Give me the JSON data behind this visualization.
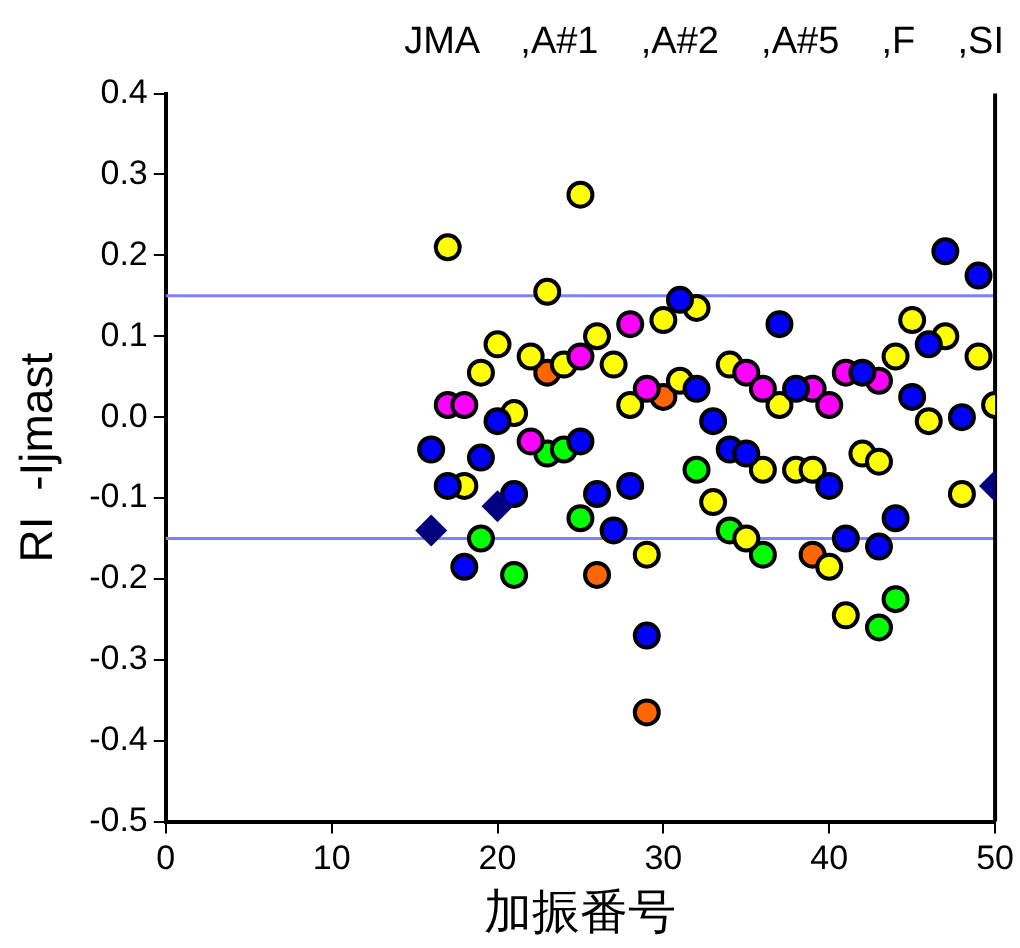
{
  "chart_data": {
    "type": "scatter",
    "title": "JMA    ,A#1    ,A#2    ,A#5    ,F    ,SI",
    "xlabel": "加振番号",
    "ylabel": "RI  -Ijmast",
    "xlim": [
      0,
      50
    ],
    "xticks": [
      0,
      10,
      20,
      30,
      40,
      50
    ],
    "ylim": [
      -0.5,
      0.4
    ],
    "yticks": [
      {
        "value": -0.5,
        "label": "-0.5"
      },
      {
        "value": -0.4,
        "label": "-0.4"
      },
      {
        "value": -0.3,
        "label": "-0.3"
      },
      {
        "value": -0.2,
        "label": "-0.2"
      },
      {
        "value": -0.1,
        "label": "-0.1"
      },
      {
        "value": 0,
        "label": "0.0"
      },
      {
        "value": 0.1,
        "label": "0.1"
      },
      {
        "value": 0.2,
        "label": "0.2"
      },
      {
        "value": 0.3,
        "label": "0.3"
      },
      {
        "value": 0.4,
        "label": "0.4"
      }
    ],
    "grid": false,
    "legend": false,
    "ref_lines": [
      {
        "axis": "y",
        "value": 0.15,
        "color": "#8080ff"
      },
      {
        "axis": "y",
        "value": -0.15,
        "color": "#8080ff"
      }
    ],
    "series": [
      {
        "color": "#000080",
        "marker": "diamond",
        "x": [
          16,
          20,
          50
        ],
        "values": [
          -0.14,
          -0.11,
          -0.085
        ]
      },
      {
        "color": "#0000ff",
        "marker": "circle",
        "x": [
          16,
          20,
          19,
          25,
          17,
          21,
          26,
          28,
          18,
          27,
          29,
          47,
          49,
          31,
          37,
          46,
          38,
          42,
          45,
          48,
          32,
          33,
          34,
          35,
          40,
          41,
          43,
          44
        ],
        "values": [
          -0.04,
          -0.005,
          -0.05,
          -0.03,
          -0.085,
          -0.095,
          -0.095,
          -0.085,
          -0.185,
          -0.14,
          -0.27,
          0.205,
          0.175,
          0.145,
          0.115,
          0.09,
          0.035,
          0.055,
          0.025,
          0,
          0.035,
          -0.005,
          -0.04,
          -0.045,
          -0.085,
          -0.15,
          -0.16,
          -0.125
        ]
      },
      {
        "color": "#ff00ff",
        "marker": "circle",
        "x": [
          17,
          18,
          22,
          25,
          28,
          29,
          35,
          36,
          39,
          40,
          41,
          43
        ],
        "values": [
          0.015,
          0.015,
          -0.03,
          0.075,
          0.115,
          0.035,
          0.055,
          0.035,
          0.035,
          0.015,
          0.055,
          0.045
        ]
      },
      {
        "color": "#ffff00",
        "marker": "circle",
        "x": [
          17,
          25,
          23,
          20,
          19,
          22,
          24,
          26,
          27,
          30,
          21,
          28,
          18,
          29,
          32,
          45,
          47,
          44,
          49,
          34,
          37,
          50,
          46,
          31,
          36,
          38,
          39,
          42,
          43,
          48,
          33,
          35,
          40,
          41
        ],
        "values": [
          0.21,
          0.275,
          0.155,
          0.09,
          0.055,
          0.075,
          0.065,
          0.1,
          0.065,
          0.12,
          0.005,
          0.015,
          -0.085,
          -0.17,
          0.135,
          0.12,
          0.1,
          0.075,
          0.075,
          0.065,
          0.015,
          0.015,
          -0.005,
          0.045,
          -0.065,
          -0.065,
          -0.065,
          -0.045,
          -0.055,
          -0.095,
          -0.105,
          -0.15,
          -0.185,
          -0.245
        ]
      },
      {
        "color": "#00ff00",
        "marker": "circle",
        "x": [
          23,
          24,
          19,
          21,
          25,
          32,
          34,
          36,
          44,
          43
        ],
        "values": [
          -0.045,
          -0.04,
          -0.15,
          -0.195,
          -0.125,
          -0.065,
          -0.14,
          -0.17,
          -0.225,
          -0.26
        ]
      },
      {
        "color": "#ff6600",
        "marker": "circle",
        "x": [
          23,
          30,
          26,
          29,
          39
        ],
        "values": [
          0.055,
          0.025,
          -0.195,
          -0.365,
          -0.17
        ]
      }
    ]
  }
}
